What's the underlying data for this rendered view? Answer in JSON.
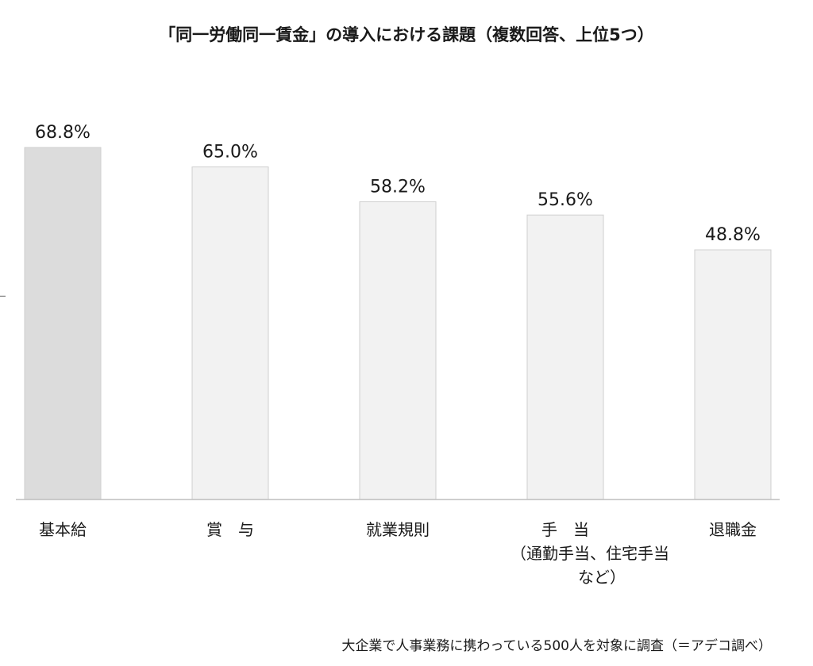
{
  "chart_data": {
    "type": "bar",
    "title": "「同一労働同一賃金」の導入における課題（複数回答、上位5つ）",
    "categories": [
      [
        "基本給"
      ],
      [
        "賞　与"
      ],
      [
        "就業規則"
      ],
      [
        "手　当",
        "（通勤手当、住宅手当",
        "など）"
      ],
      [
        "退職金"
      ]
    ],
    "values": [
      68.8,
      65.0,
      58.2,
      55.6,
      48.8
    ],
    "value_labels": [
      "68.8%",
      "65.0%",
      "58.2%",
      "55.6%",
      "48.8%"
    ],
    "ylim": [
      0,
      68.8
    ],
    "highlight_index": 0,
    "colors": {
      "highlight_fill": "#dcdcdc",
      "bar_fill": "#f2f2f2",
      "bar_stroke": "#cfcfcf",
      "baseline": "#bdbdbd"
    },
    "grid": false,
    "legend": "none"
  },
  "footnote": "大企業で人事業務に携わっている500人を対象に調査（＝アデコ調べ）"
}
